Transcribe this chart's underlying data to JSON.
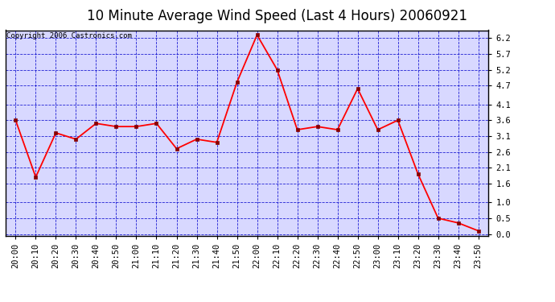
{
  "title": "10 Minute Average Wind Speed (Last 4 Hours) 20060921",
  "copyright": "Copyright 2006 Castronics.com",
  "x_labels": [
    "20:00",
    "20:10",
    "20:20",
    "20:30",
    "20:40",
    "20:50",
    "21:00",
    "21:10",
    "21:20",
    "21:30",
    "21:40",
    "21:50",
    "22:00",
    "22:10",
    "22:20",
    "22:30",
    "22:40",
    "22:50",
    "23:00",
    "23:10",
    "23:20",
    "23:30",
    "23:40",
    "23:50"
  ],
  "y_values": [
    3.6,
    1.8,
    3.2,
    3.0,
    3.5,
    3.4,
    3.4,
    3.5,
    2.7,
    3.0,
    2.9,
    4.8,
    6.3,
    5.2,
    3.3,
    3.4,
    3.3,
    4.6,
    3.3,
    3.6,
    1.9,
    0.5,
    0.35,
    0.1
  ],
  "yticks": [
    0.0,
    0.5,
    1.0,
    1.6,
    2.1,
    2.6,
    3.1,
    3.6,
    4.1,
    4.7,
    5.2,
    5.7,
    6.2
  ],
  "ylim": [
    -0.05,
    6.45
  ],
  "line_color": "red",
  "marker_color": "#880000",
  "fig_bg_color": "#ffffff",
  "plot_bg_color": "#d8d8ff",
  "grid_color": "#0000cc",
  "border_color": "#000000",
  "title_fontsize": 12,
  "copyright_fontsize": 6.5,
  "tick_fontsize": 7.5
}
